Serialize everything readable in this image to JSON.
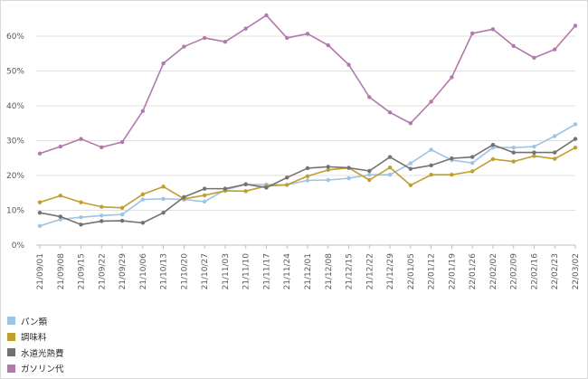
{
  "chart_data": {
    "type": "line",
    "title": "",
    "xlabel": "",
    "ylabel": "",
    "categories": [
      "21/09/01",
      "21/09/08",
      "21/09/15",
      "21/09/22",
      "21/09/29",
      "21/10/06",
      "21/10/13",
      "21/10/20",
      "21/10/27",
      "21/11/03",
      "21/11/10",
      "21/11/17",
      "21/11/24",
      "21/12/01",
      "21/12/08",
      "21/12/15",
      "21/12/22",
      "21/12/29",
      "22/01/05",
      "22/01/12",
      "22/01/19",
      "22/01/26",
      "22/02/02",
      "22/02/09",
      "22/02/16",
      "22/02/23",
      "22/03/02"
    ],
    "yticks": [
      "0%",
      "10%",
      "20%",
      "30%",
      "40%",
      "50%",
      "60%"
    ],
    "ylim": [
      0,
      0.68
    ],
    "grid": "horizontal",
    "legend_position": "bottom-left",
    "series": [
      {
        "name": "パン類",
        "color": "#9dc3e6",
        "values": [
          0.055,
          0.074,
          0.08,
          0.085,
          0.088,
          0.131,
          0.133,
          0.131,
          0.125,
          0.159,
          0.174,
          0.174,
          0.173,
          0.186,
          0.187,
          0.192,
          0.202,
          0.202,
          0.235,
          0.274,
          0.244,
          0.236,
          0.28,
          0.28,
          0.283,
          0.313,
          0.347
        ]
      },
      {
        "name": "調味料",
        "color": "#bf9f2e",
        "values": [
          0.123,
          0.142,
          0.123,
          0.11,
          0.107,
          0.146,
          0.168,
          0.133,
          0.143,
          0.156,
          0.155,
          0.17,
          0.173,
          0.198,
          0.216,
          0.222,
          0.187,
          0.223,
          0.172,
          0.202,
          0.202,
          0.212,
          0.247,
          0.24,
          0.256,
          0.248,
          0.28
        ]
      },
      {
        "name": "水道光熱費",
        "color": "#767171",
        "values": [
          0.093,
          0.082,
          0.059,
          0.069,
          0.07,
          0.064,
          0.093,
          0.138,
          0.162,
          0.162,
          0.175,
          0.165,
          0.194,
          0.221,
          0.225,
          0.222,
          0.213,
          0.253,
          0.219,
          0.229,
          0.249,
          0.253,
          0.288,
          0.266,
          0.266,
          0.266,
          0.305
        ]
      },
      {
        "name": "ガソリン代",
        "color": "#b279ad",
        "values": [
          0.263,
          0.283,
          0.305,
          0.281,
          0.296,
          0.385,
          0.522,
          0.57,
          0.595,
          0.584,
          0.622,
          0.66,
          0.595,
          0.607,
          0.574,
          0.518,
          0.425,
          0.381,
          0.35,
          0.412,
          0.482,
          0.608,
          0.62,
          0.572,
          0.538,
          0.562,
          0.63
        ]
      }
    ]
  }
}
